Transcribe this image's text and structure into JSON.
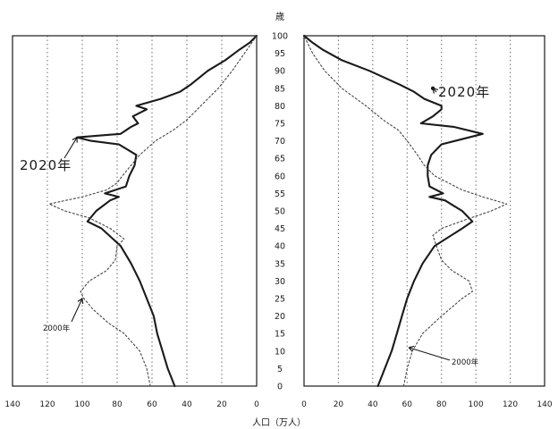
{
  "chart_data": {
    "type": "line",
    "subtype": "population-pyramid",
    "title": "",
    "y_unit": "歳",
    "xlabel": "人口（万人）",
    "xlim": [
      0,
      140
    ],
    "ylim": [
      0,
      100
    ],
    "x_ticks_left": [
      "140",
      "120",
      "100",
      "80",
      "60",
      "40",
      "20",
      "0"
    ],
    "x_ticks_right": [
      "0",
      "20",
      "40",
      "60",
      "80",
      "100",
      "120",
      "140"
    ],
    "y_ticks": [
      "0",
      "5",
      "10",
      "15",
      "20",
      "25",
      "30",
      "35",
      "40",
      "45",
      "50",
      "55",
      "60",
      "65",
      "70",
      "75",
      "80",
      "85",
      "90",
      "95",
      "100"
    ],
    "grid": "vertical-dotted",
    "colors": {
      "line_2020": "#1a1a1a",
      "line_2000": "#444444",
      "grid": "#7a7a7a",
      "frame": "#1a1a1a"
    },
    "series": [
      {
        "name": "2020年",
        "style": "solid",
        "left": [
          [
            0,
            47
          ],
          [
            5,
            51
          ],
          [
            10,
            54
          ],
          [
            15,
            57
          ],
          [
            20,
            59
          ],
          [
            25,
            63
          ],
          [
            30,
            67
          ],
          [
            35,
            72
          ],
          [
            40,
            78
          ],
          [
            45,
            89
          ],
          [
            47,
            97
          ],
          [
            50,
            92
          ],
          [
            53,
            84
          ],
          [
            54,
            79
          ],
          [
            55,
            87
          ],
          [
            57,
            75
          ],
          [
            60,
            73
          ],
          [
            63,
            70
          ],
          [
            66,
            69
          ],
          [
            69,
            79
          ],
          [
            70,
            95
          ],
          [
            71,
            103
          ],
          [
            72,
            78
          ],
          [
            74,
            72
          ],
          [
            75,
            68
          ],
          [
            77,
            71
          ],
          [
            79,
            63
          ],
          [
            80,
            69
          ],
          [
            82,
            55
          ],
          [
            84,
            44
          ],
          [
            86,
            38
          ],
          [
            90,
            28
          ],
          [
            93,
            18
          ],
          [
            96,
            10
          ],
          [
            98,
            4
          ],
          [
            100,
            0
          ]
        ],
        "right": [
          [
            0,
            43
          ],
          [
            5,
            47
          ],
          [
            10,
            51
          ],
          [
            15,
            54
          ],
          [
            20,
            57
          ],
          [
            25,
            60
          ],
          [
            30,
            64
          ],
          [
            35,
            69
          ],
          [
            40,
            76
          ],
          [
            45,
            92
          ],
          [
            47,
            98
          ],
          [
            50,
            92
          ],
          [
            53,
            82
          ],
          [
            54,
            73
          ],
          [
            55,
            81
          ],
          [
            57,
            73
          ],
          [
            60,
            72
          ],
          [
            63,
            72
          ],
          [
            66,
            74
          ],
          [
            69,
            80
          ],
          [
            72,
            104
          ],
          [
            74,
            87
          ],
          [
            75,
            68
          ],
          [
            77,
            75
          ],
          [
            79,
            80
          ],
          [
            80,
            80
          ],
          [
            82,
            70
          ],
          [
            84,
            64
          ],
          [
            86,
            56
          ],
          [
            90,
            38
          ],
          [
            93,
            22
          ],
          [
            96,
            11
          ],
          [
            98,
            5
          ],
          [
            100,
            0
          ]
        ]
      },
      {
        "name": "2000年",
        "style": "dotted",
        "left": [
          [
            0,
            61
          ],
          [
            5,
            63
          ],
          [
            10,
            67
          ],
          [
            15,
            76
          ],
          [
            18,
            85
          ],
          [
            22,
            94
          ],
          [
            25,
            99
          ],
          [
            27,
            101
          ],
          [
            30,
            96
          ],
          [
            33,
            86
          ],
          [
            36,
            81
          ],
          [
            40,
            80
          ],
          [
            42,
            76
          ],
          [
            45,
            84
          ],
          [
            48,
            96
          ],
          [
            50,
            110
          ],
          [
            52,
            119
          ],
          [
            54,
            100
          ],
          [
            56,
            86
          ],
          [
            58,
            80
          ],
          [
            60,
            77
          ],
          [
            63,
            72
          ],
          [
            66,
            67
          ],
          [
            70,
            58
          ],
          [
            73,
            48
          ],
          [
            76,
            40
          ],
          [
            80,
            32
          ],
          [
            85,
            22
          ],
          [
            90,
            14
          ],
          [
            95,
            7
          ],
          [
            100,
            0
          ]
        ],
        "right": [
          [
            0,
            58
          ],
          [
            5,
            60
          ],
          [
            10,
            63
          ],
          [
            15,
            69
          ],
          [
            20,
            80
          ],
          [
            25,
            92
          ],
          [
            27,
            98
          ],
          [
            30,
            96
          ],
          [
            33,
            86
          ],
          [
            36,
            80
          ],
          [
            40,
            77
          ],
          [
            43,
            75
          ],
          [
            45,
            80
          ],
          [
            48,
            97
          ],
          [
            50,
            109
          ],
          [
            52,
            118
          ],
          [
            54,
            104
          ],
          [
            56,
            92
          ],
          [
            58,
            84
          ],
          [
            60,
            76
          ],
          [
            63,
            70
          ],
          [
            66,
            66
          ],
          [
            70,
            60
          ],
          [
            73,
            55
          ],
          [
            76,
            46
          ],
          [
            80,
            36
          ],
          [
            85,
            22
          ],
          [
            90,
            12
          ],
          [
            95,
            5
          ],
          [
            100,
            0
          ]
        ]
      }
    ],
    "annotations": [
      {
        "text": "2020年",
        "side": "left",
        "age": 66.5,
        "pop": 130
      },
      {
        "text": "2020年",
        "side": "right",
        "age": 85,
        "pop": 77
      },
      {
        "text": "2000年",
        "side": "left",
        "age": 16,
        "pop": 112
      },
      {
        "text": "2000年",
        "side": "right",
        "age": 6.5,
        "pop": 86
      }
    ]
  }
}
